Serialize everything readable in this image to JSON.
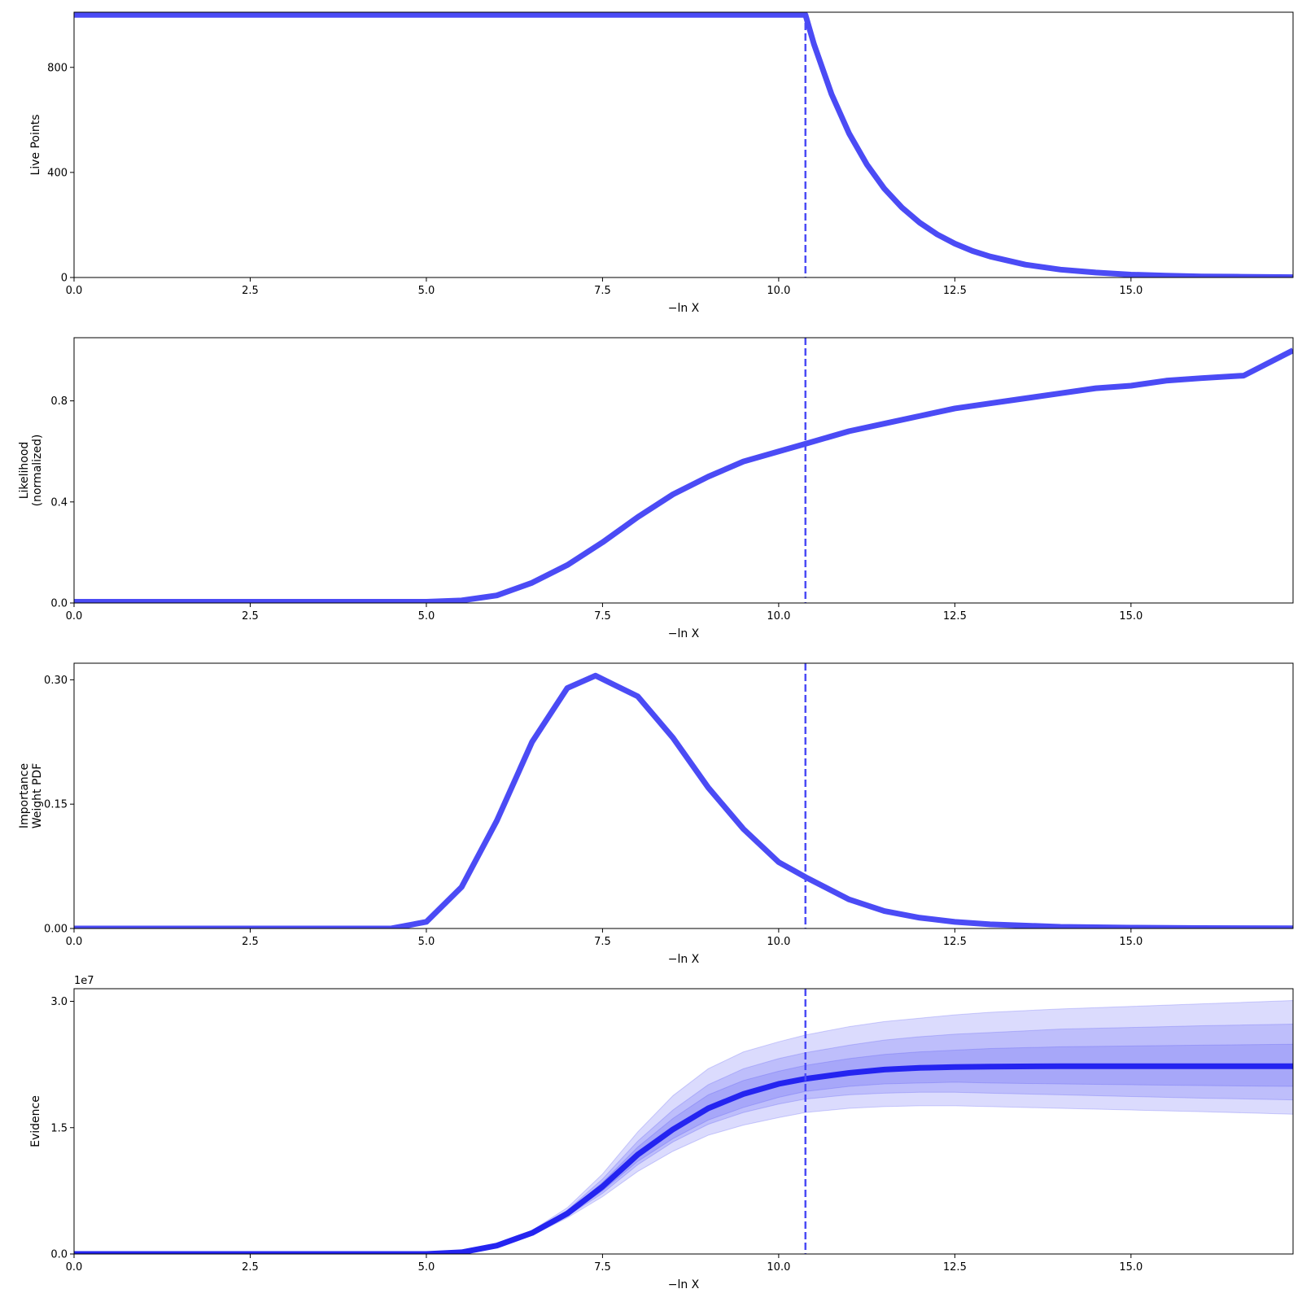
{
  "chart_data": [
    {
      "type": "line",
      "ylabel": [
        "Live Points"
      ],
      "xlabel": "−ln X",
      "xlim": [
        0,
        17.3
      ],
      "ylim": [
        0,
        1010
      ],
      "xticks": [
        0,
        2.5,
        5,
        7.5,
        10,
        12.5,
        15
      ],
      "xtick_labels": [
        "0.0",
        "2.5",
        "5.0",
        "7.5",
        "10.0",
        "12.5",
        "15.0"
      ],
      "yticks": [
        0,
        400,
        800
      ],
      "ytick_labels": [
        "0",
        "400",
        "800"
      ],
      "vline_x": 10.38,
      "line_color": "#4b4bf5",
      "series": [
        {
          "x": [
            0,
            10.38,
            10.5,
            10.75,
            11.0,
            11.25,
            11.5,
            11.75,
            12.0,
            12.25,
            12.5,
            12.75,
            13.0,
            13.5,
            14.0,
            14.5,
            15.0,
            15.5,
            16.0,
            16.5,
            17.3
          ],
          "values": [
            1000,
            1000,
            889,
            698,
            548,
            431,
            338,
            266,
            209,
            164,
            129,
            101,
            80,
            49,
            30,
            19,
            11,
            7,
            4,
            3,
            1
          ]
        }
      ]
    },
    {
      "type": "line",
      "ylabel": [
        "Likelihood",
        "(normalized)"
      ],
      "xlabel": "−ln X",
      "xlim": [
        0,
        17.3
      ],
      "ylim": [
        0,
        1.05
      ],
      "xticks": [
        0,
        2.5,
        5,
        7.5,
        10,
        12.5,
        15
      ],
      "xtick_labels": [
        "0.0",
        "2.5",
        "5.0",
        "7.5",
        "10.0",
        "12.5",
        "15.0"
      ],
      "yticks": [
        0,
        0.4,
        0.8
      ],
      "ytick_labels": [
        "0.0",
        "0.4",
        "0.8"
      ],
      "vline_x": 10.38,
      "line_color": "#4b4bf5",
      "series": [
        {
          "x": [
            0,
            5.0,
            5.5,
            6.0,
            6.5,
            7.0,
            7.5,
            8.0,
            8.5,
            9.0,
            9.5,
            10.0,
            10.38,
            11.0,
            11.5,
            12.0,
            12.5,
            13.0,
            13.5,
            14.0,
            14.5,
            15.0,
            15.5,
            16.0,
            16.6,
            17.3
          ],
          "values": [
            0.005,
            0.005,
            0.01,
            0.03,
            0.08,
            0.15,
            0.24,
            0.34,
            0.43,
            0.5,
            0.56,
            0.6,
            0.63,
            0.68,
            0.71,
            0.74,
            0.77,
            0.79,
            0.81,
            0.83,
            0.85,
            0.86,
            0.88,
            0.89,
            0.9,
            1.0
          ]
        }
      ]
    },
    {
      "type": "line",
      "ylabel": [
        "Importance",
        "Weight PDF"
      ],
      "xlabel": "−ln X",
      "xlim": [
        0,
        17.3
      ],
      "ylim": [
        0,
        0.32
      ],
      "xticks": [
        0,
        2.5,
        5,
        7.5,
        10,
        12.5,
        15
      ],
      "xtick_labels": [
        "0.0",
        "2.5",
        "5.0",
        "7.5",
        "10.0",
        "12.5",
        "15.0"
      ],
      "yticks": [
        0,
        0.15,
        0.3
      ],
      "ytick_labels": [
        "0.00",
        "0.15",
        "0.30"
      ],
      "vline_x": 10.38,
      "line_color": "#4b4bf5",
      "series": [
        {
          "x": [
            0,
            4.5,
            5.0,
            5.5,
            6.0,
            6.5,
            7.0,
            7.4,
            8.0,
            8.5,
            9.0,
            9.5,
            10.0,
            10.38,
            11.0,
            11.5,
            12.0,
            12.5,
            13.0,
            14.0,
            15.0,
            16.0,
            17.3
          ],
          "values": [
            0,
            0,
            0.008,
            0.05,
            0.13,
            0.225,
            0.29,
            0.305,
            0.28,
            0.23,
            0.17,
            0.12,
            0.08,
            0.062,
            0.035,
            0.021,
            0.013,
            0.008,
            0.005,
            0.002,
            0.001,
            0.0005,
            0.0002
          ]
        }
      ]
    },
    {
      "type": "line",
      "ylabel": [
        "Evidence"
      ],
      "xlabel": "−ln X",
      "y_offset_label": "1e7",
      "xlim": [
        0,
        17.3
      ],
      "ylim": [
        0,
        31.5
      ],
      "xticks": [
        0,
        2.5,
        5,
        7.5,
        10,
        12.5,
        15
      ],
      "xtick_labels": [
        "0.0",
        "2.5",
        "5.0",
        "7.5",
        "10.0",
        "12.5",
        "15.0"
      ],
      "yticks": [
        0,
        15,
        30
      ],
      "ytick_labels": [
        "0.0",
        "1.5",
        "3.0"
      ],
      "vline_x": 10.38,
      "line_color": "#2424f0",
      "band_color": "#4b4bf5",
      "series": [
        {
          "x": [
            0,
            5.0,
            5.5,
            6.0,
            6.5,
            7.0,
            7.5,
            8.0,
            8.5,
            9.0,
            9.5,
            10.0,
            10.38,
            11.0,
            11.5,
            12.0,
            12.5,
            13.0,
            14.0,
            15.0,
            16.0,
            17.3
          ],
          "values": [
            0,
            0,
            0.2,
            1.0,
            2.5,
            4.8,
            8.0,
            11.8,
            14.8,
            17.3,
            19.0,
            20.2,
            20.8,
            21.5,
            21.9,
            22.1,
            22.2,
            22.25,
            22.3,
            22.3,
            22.3,
            22.3
          ]
        }
      ],
      "bands": [
        {
          "upper": [
            0,
            0,
            0.2,
            1.1,
            2.8,
            5.5,
            9.5,
            14.5,
            18.8,
            22.0,
            24.0,
            25.2,
            26.0,
            27.0,
            27.6,
            28.0,
            28.4,
            28.7,
            29.1,
            29.4,
            29.7,
            30.1
          ],
          "lower": [
            0,
            0,
            0.2,
            0.9,
            2.2,
            4.3,
            6.8,
            9.8,
            12.2,
            14.1,
            15.3,
            16.2,
            16.8,
            17.3,
            17.5,
            17.6,
            17.6,
            17.5,
            17.3,
            17.1,
            16.9,
            16.6
          ]
        },
        {
          "upper": [
            0,
            0,
            0.2,
            1.05,
            2.7,
            5.2,
            8.9,
            13.4,
            17.1,
            20.1,
            22.0,
            23.2,
            23.9,
            24.8,
            25.4,
            25.8,
            26.1,
            26.3,
            26.7,
            26.9,
            27.1,
            27.3
          ],
          "lower": [
            0,
            0,
            0.2,
            0.95,
            2.3,
            4.5,
            7.2,
            10.6,
            13.3,
            15.4,
            16.8,
            17.8,
            18.4,
            18.9,
            19.1,
            19.2,
            19.2,
            19.1,
            18.9,
            18.7,
            18.5,
            18.3
          ]
        },
        {
          "upper": [
            0,
            0,
            0.2,
            1.02,
            2.6,
            5.0,
            8.5,
            12.7,
            16.1,
            18.9,
            20.6,
            21.7,
            22.4,
            23.2,
            23.7,
            24.0,
            24.2,
            24.4,
            24.6,
            24.7,
            24.8,
            24.9
          ],
          "lower": [
            0,
            0,
            0.2,
            0.98,
            2.4,
            4.6,
            7.5,
            11.0,
            13.7,
            15.9,
            17.4,
            18.6,
            19.3,
            19.9,
            20.2,
            20.3,
            20.4,
            20.3,
            20.2,
            20.1,
            20.0,
            19.9
          ]
        }
      ]
    }
  ]
}
